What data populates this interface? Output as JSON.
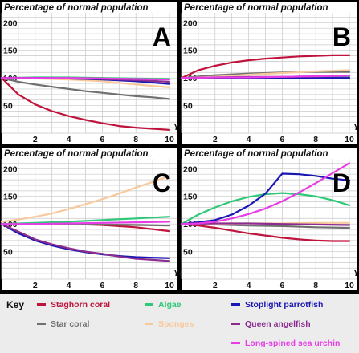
{
  "chart_data": [
    {
      "panel": "A",
      "type": "line",
      "title": "Percentage of normal population",
      "xlabel": "Year",
      "ylabel": "",
      "xlim": [
        0,
        10
      ],
      "ylim": [
        0,
        215
      ],
      "xticks": [
        2,
        4,
        6,
        8,
        10
      ],
      "yticks": [
        50,
        100,
        150,
        200
      ],
      "grid": true,
      "series": [
        {
          "name": "Staghorn coral",
          "x": [
            0,
            1,
            2,
            3,
            4,
            5,
            6,
            7,
            8,
            9,
            10
          ],
          "values": [
            100,
            70,
            52,
            40,
            31,
            24,
            18,
            13,
            10,
            8,
            6
          ]
        },
        {
          "name": "Star coral",
          "x": [
            0,
            1,
            2,
            3,
            4,
            5,
            6,
            7,
            8,
            9,
            10
          ],
          "values": [
            100,
            93,
            88,
            84,
            80,
            76,
            73,
            70,
            67,
            65,
            62
          ]
        },
        {
          "name": "Algae",
          "x": [
            0,
            2,
            4,
            6,
            8,
            10
          ],
          "values": [
            100,
            101,
            101,
            100,
            99,
            98
          ]
        },
        {
          "name": "Sponges",
          "x": [
            0,
            2,
            4,
            6,
            8,
            10
          ],
          "values": [
            100,
            99,
            97,
            94,
            88,
            83
          ]
        },
        {
          "name": "Stoplight parrotfish",
          "x": [
            0,
            2,
            4,
            6,
            8,
            10
          ],
          "values": [
            100,
            100,
            99,
            97,
            94,
            89
          ]
        },
        {
          "name": "Queen angelfish",
          "x": [
            0,
            2,
            4,
            6,
            8,
            10
          ],
          "values": [
            100,
            100,
            99,
            98,
            96,
            93
          ]
        },
        {
          "name": "Long-spined sea urchin",
          "x": [
            0,
            2,
            4,
            6,
            8,
            10
          ],
          "values": [
            100,
            100,
            100,
            99,
            98,
            97
          ]
        }
      ]
    },
    {
      "panel": "B",
      "type": "line",
      "title": "Percentage of normal population",
      "xlabel": "Year",
      "ylabel": "",
      "xlim": [
        0,
        10
      ],
      "ylim": [
        0,
        215
      ],
      "xticks": [
        2,
        4,
        6,
        8,
        10
      ],
      "yticks": [
        50,
        100,
        150,
        200
      ],
      "grid": true,
      "series": [
        {
          "name": "Staghorn coral",
          "x": [
            0,
            1,
            2,
            3,
            4,
            5,
            6,
            7,
            8,
            9,
            10
          ],
          "values": [
            100,
            114,
            122,
            128,
            132,
            135,
            137,
            139,
            140,
            141,
            141
          ]
        },
        {
          "name": "Star coral",
          "x": [
            0,
            2,
            4,
            6,
            8,
            10
          ],
          "values": [
            100,
            105,
            108,
            110,
            111,
            111
          ]
        },
        {
          "name": "Algae",
          "x": [
            0,
            2,
            4,
            6,
            8,
            10
          ],
          "values": [
            100,
            100,
            100,
            101,
            101,
            101
          ]
        },
        {
          "name": "Sponges",
          "x": [
            0,
            2,
            4,
            6,
            8,
            10
          ],
          "values": [
            100,
            102,
            106,
            109,
            112,
            114
          ]
        },
        {
          "name": "Stoplight parrotfish",
          "x": [
            0,
            2,
            4,
            6,
            8,
            10
          ],
          "values": [
            100,
            100,
            100,
            100,
            100,
            100
          ]
        },
        {
          "name": "Queen angelfish",
          "x": [
            0,
            2,
            4,
            6,
            8,
            10
          ],
          "values": [
            100,
            101,
            102,
            102,
            103,
            104
          ]
        },
        {
          "name": "Long-spined sea urchin",
          "x": [
            0,
            2,
            4,
            6,
            8,
            10
          ],
          "values": [
            100,
            101,
            101,
            102,
            103,
            104
          ]
        }
      ]
    },
    {
      "panel": "C",
      "type": "line",
      "title": "Percentage of normal population",
      "xlabel": "Year",
      "ylabel": "",
      "xlim": [
        0,
        10
      ],
      "ylim": [
        0,
        215
      ],
      "xticks": [
        2,
        4,
        6,
        8,
        10
      ],
      "yticks": [
        50,
        100,
        150,
        200
      ],
      "grid": true,
      "series": [
        {
          "name": "Staghorn coral",
          "x": [
            0,
            2,
            4,
            6,
            8,
            10
          ],
          "values": [
            100,
            101,
            100,
            98,
            94,
            87
          ]
        },
        {
          "name": "Star coral",
          "x": [
            0,
            2,
            4,
            6,
            8,
            10
          ],
          "values": [
            100,
            101,
            100,
            99,
            98,
            97
          ]
        },
        {
          "name": "Algae",
          "x": [
            0,
            2,
            4,
            6,
            8,
            10
          ],
          "values": [
            100,
            102,
            104,
            107,
            110,
            113
          ]
        },
        {
          "name": "Sponges",
          "x": [
            0,
            1,
            2,
            3,
            4,
            5,
            6,
            7,
            8,
            9,
            10
          ],
          "values": [
            104,
            108,
            113,
            119,
            127,
            136,
            145,
            155,
            166,
            176,
            187
          ]
        },
        {
          "name": "Stoplight parrotfish",
          "x": [
            0,
            1,
            2,
            3,
            4,
            5,
            6,
            7,
            8,
            9,
            10
          ],
          "values": [
            100,
            83,
            70,
            61,
            54,
            49,
            45,
            42,
            40,
            39,
            38
          ]
        },
        {
          "name": "Queen angelfish",
          "x": [
            0,
            1,
            2,
            3,
            4,
            5,
            6,
            7,
            8,
            9,
            10
          ],
          "values": [
            100,
            86,
            72,
            63,
            56,
            50,
            46,
            41,
            37,
            35,
            33
          ]
        },
        {
          "name": "Long-spined sea urchin",
          "x": [
            0,
            2,
            4,
            6,
            8,
            10
          ],
          "values": [
            100,
            100,
            101,
            102,
            103,
            104
          ]
        }
      ]
    },
    {
      "panel": "D",
      "type": "line",
      "title": "Percentage of normal population",
      "xlabel": "Year",
      "ylabel": "",
      "xlim": [
        0,
        10
      ],
      "ylim": [
        0,
        215
      ],
      "xticks": [
        2,
        4,
        6,
        8,
        10
      ],
      "yticks": [
        50,
        100,
        150,
        200
      ],
      "grid": true,
      "series": [
        {
          "name": "Staghorn coral",
          "x": [
            0,
            1,
            2,
            3,
            4,
            5,
            6,
            7,
            8,
            9,
            10
          ],
          "values": [
            100,
            97,
            93,
            88,
            83,
            79,
            75,
            72,
            70,
            69,
            69
          ]
        },
        {
          "name": "Star coral",
          "x": [
            0,
            2,
            4,
            6,
            8,
            10
          ],
          "values": [
            100,
            99,
            97,
            96,
            94,
            93
          ]
        },
        {
          "name": "Algae",
          "x": [
            0,
            1,
            2,
            3,
            4,
            5,
            6,
            7,
            8,
            9,
            10
          ],
          "values": [
            100,
            117,
            130,
            141,
            149,
            154,
            156,
            154,
            150,
            143,
            134
          ]
        },
        {
          "name": "Sponges",
          "x": [
            0,
            2,
            4,
            6,
            8,
            10
          ],
          "values": [
            100,
            100,
            101,
            101,
            102,
            102
          ]
        },
        {
          "name": "Stoplight parrotfish",
          "x": [
            0,
            1,
            2,
            3,
            4,
            5,
            6,
            7,
            8,
            9,
            10
          ],
          "values": [
            100,
            103,
            107,
            117,
            133,
            155,
            191,
            190,
            187,
            182,
            179
          ]
        },
        {
          "name": "Queen angelfish",
          "x": [
            0,
            2,
            4,
            6,
            8,
            10
          ],
          "values": [
            100,
            101,
            101,
            100,
            99,
            98
          ]
        },
        {
          "name": "Long-spined sea urchin",
          "x": [
            0,
            1,
            2,
            3,
            4,
            5,
            6,
            7,
            8,
            9,
            10
          ],
          "values": [
            100,
            101,
            104,
            110,
            118,
            128,
            141,
            157,
            174,
            192,
            210
          ]
        }
      ]
    }
  ],
  "legend": {
    "title": "Key",
    "items": [
      {
        "label": "Staghorn coral",
        "color": "#c0143c"
      },
      {
        "label": "Algae",
        "color": "#2ec877"
      },
      {
        "label": "Stoplight parrotfish",
        "color": "#1a16b4"
      },
      {
        "label": "Star coral",
        "color": "#707070"
      },
      {
        "label": "Sponges",
        "color": "#f8c99a"
      },
      {
        "label": "Queen angelfish",
        "color": "#8a2d8f"
      },
      {
        "label": "Long-spined sea urchin",
        "color": "#e83ce6"
      }
    ]
  }
}
